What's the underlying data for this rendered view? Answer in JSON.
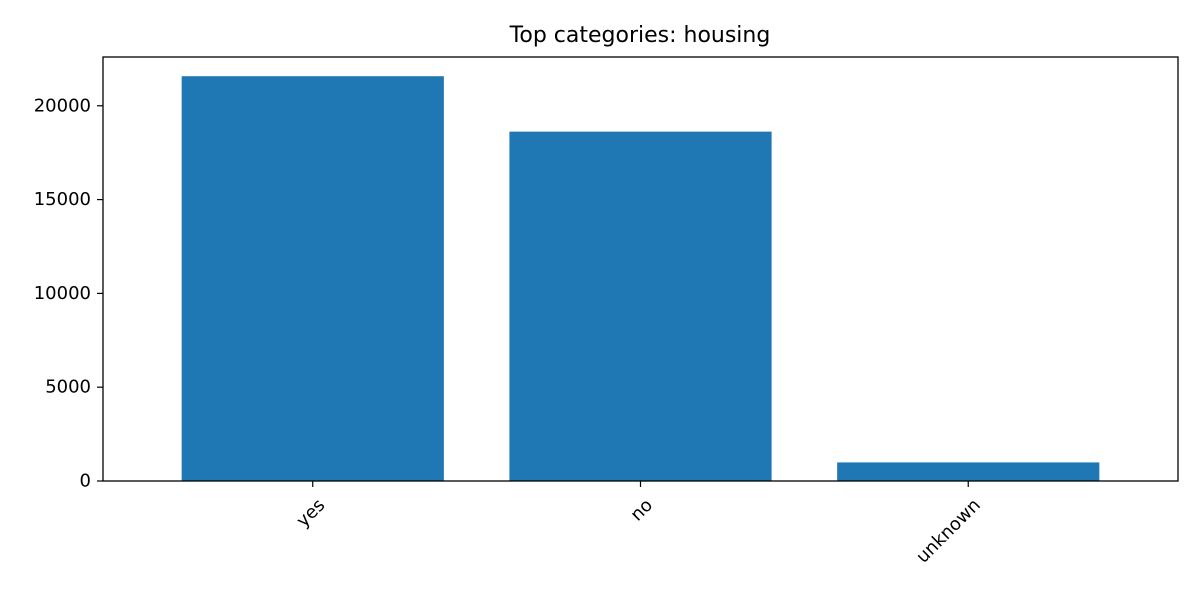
{
  "chart_data": {
    "type": "bar",
    "title": "Top categories: housing",
    "xlabel": "",
    "ylabel": "",
    "categories": [
      "yes",
      "no",
      "unknown"
    ],
    "values": [
      21576,
      18622,
      990
    ],
    "ylim": [
      0,
      22600
    ],
    "yticks": [
      0,
      5000,
      10000,
      15000,
      20000
    ],
    "ytick_labels": [
      "0",
      "5000",
      "10000",
      "15000",
      "20000"
    ],
    "grid": false,
    "legend": "none",
    "bar_color": "#1f77b4"
  }
}
